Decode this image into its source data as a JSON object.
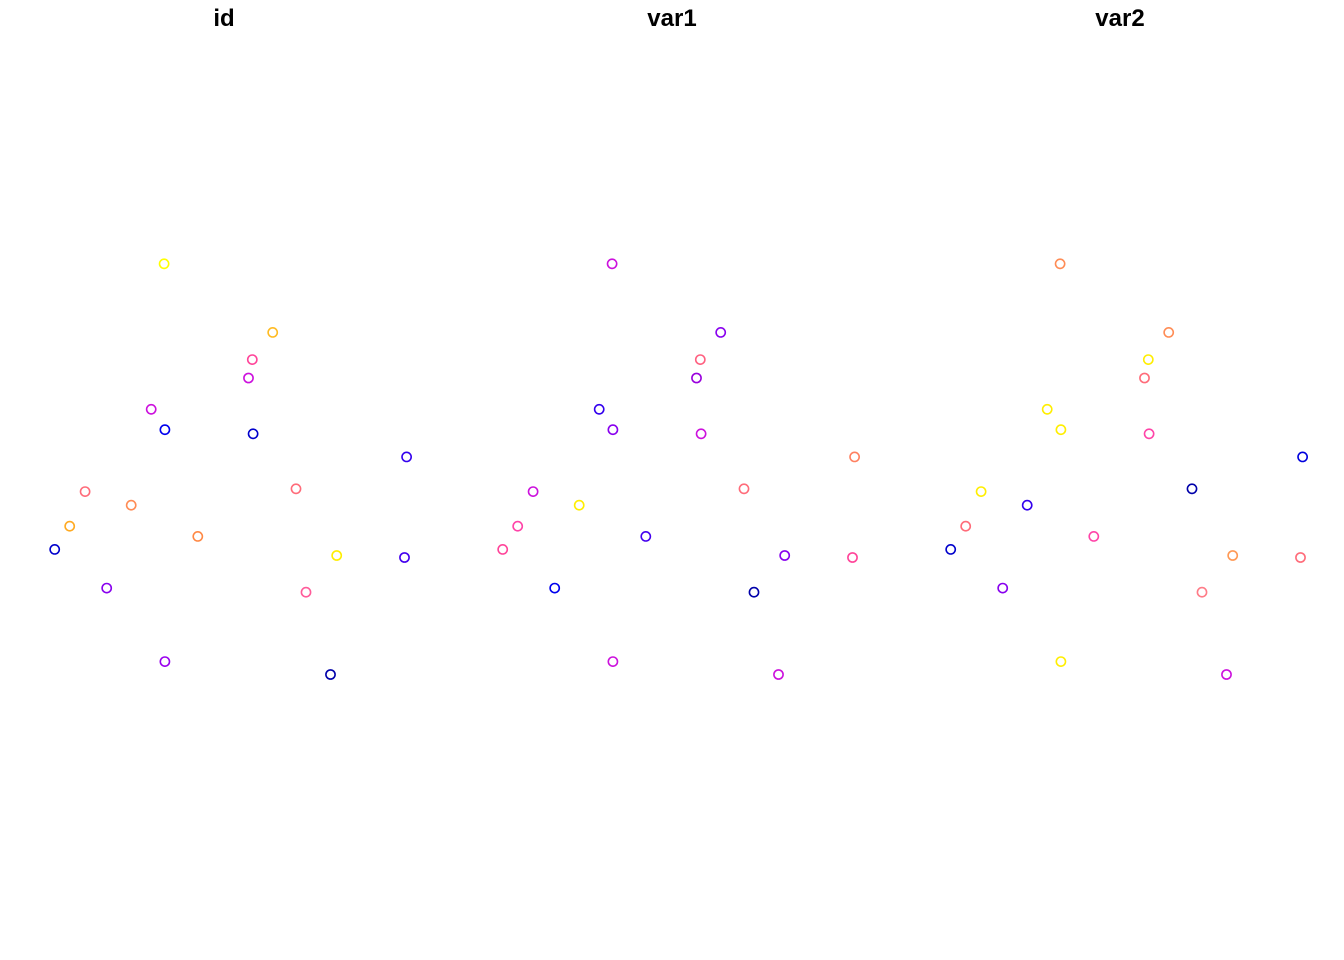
{
  "chart_data": {
    "type": "scatter",
    "axes_drawn": false,
    "grid": false,
    "legend": "none",
    "x_range": [
      0,
      1
    ],
    "y_range": [
      0,
      1
    ],
    "panels": [
      {
        "title": "id",
        "points": [
          {
            "x": 0.093,
            "y": 0.398,
            "color": "#0000CC"
          },
          {
            "x": 0.129,
            "y": 0.432,
            "color": "#FFAA22"
          },
          {
            "x": 0.166,
            "y": 0.483,
            "color": "#FF6C7A"
          },
          {
            "x": 0.218,
            "y": 0.341,
            "color": "#8800EE"
          },
          {
            "x": 0.277,
            "y": 0.463,
            "color": "#FF8C55"
          },
          {
            "x": 0.325,
            "y": 0.604,
            "color": "#CC11DD"
          },
          {
            "x": 0.356,
            "y": 0.818,
            "color": "#FFFF00"
          },
          {
            "x": 0.358,
            "y": 0.574,
            "color": "#0000EE"
          },
          {
            "x": 0.358,
            "y": 0.233,
            "color": "#9900EE"
          },
          {
            "x": 0.437,
            "y": 0.417,
            "color": "#FF8844"
          },
          {
            "x": 0.559,
            "y": 0.65,
            "color": "#CC11DD"
          },
          {
            "x": 0.568,
            "y": 0.677,
            "color": "#FF4499"
          },
          {
            "x": 0.57,
            "y": 0.568,
            "color": "#0000CC"
          },
          {
            "x": 0.617,
            "y": 0.717,
            "color": "#FFBB22"
          },
          {
            "x": 0.673,
            "y": 0.487,
            "color": "#FF6C7A"
          },
          {
            "x": 0.697,
            "y": 0.335,
            "color": "#FF5C9A"
          },
          {
            "x": 0.756,
            "y": 0.214,
            "color": "#0000AA"
          },
          {
            "x": 0.771,
            "y": 0.389,
            "color": "#FFEE00"
          },
          {
            "x": 0.934,
            "y": 0.386,
            "color": "#4400EE"
          },
          {
            "x": 0.939,
            "y": 0.534,
            "color": "#3300EE"
          }
        ]
      },
      {
        "title": "var1",
        "points": [
          {
            "x": 0.093,
            "y": 0.398,
            "color": "#FF4499"
          },
          {
            "x": 0.129,
            "y": 0.432,
            "color": "#FF44A8"
          },
          {
            "x": 0.166,
            "y": 0.483,
            "color": "#CC11DD"
          },
          {
            "x": 0.218,
            "y": 0.341,
            "color": "#0000EE"
          },
          {
            "x": 0.277,
            "y": 0.463,
            "color": "#FFEE00"
          },
          {
            "x": 0.325,
            "y": 0.604,
            "color": "#3300EE"
          },
          {
            "x": 0.356,
            "y": 0.818,
            "color": "#CC11DD"
          },
          {
            "x": 0.358,
            "y": 0.574,
            "color": "#8800EE"
          },
          {
            "x": 0.358,
            "y": 0.233,
            "color": "#CC11DD"
          },
          {
            "x": 0.437,
            "y": 0.417,
            "color": "#4400EE"
          },
          {
            "x": 0.559,
            "y": 0.65,
            "color": "#9900DD"
          },
          {
            "x": 0.568,
            "y": 0.677,
            "color": "#FF6080"
          },
          {
            "x": 0.57,
            "y": 0.568,
            "color": "#CC11DD"
          },
          {
            "x": 0.617,
            "y": 0.717,
            "color": "#8800EE"
          },
          {
            "x": 0.673,
            "y": 0.487,
            "color": "#FF6C7A"
          },
          {
            "x": 0.697,
            "y": 0.335,
            "color": "#0000AA"
          },
          {
            "x": 0.756,
            "y": 0.214,
            "color": "#CC11DD"
          },
          {
            "x": 0.771,
            "y": 0.389,
            "color": "#8800EE"
          },
          {
            "x": 0.934,
            "y": 0.386,
            "color": "#FF4499"
          },
          {
            "x": 0.939,
            "y": 0.534,
            "color": "#FF8060"
          }
        ]
      },
      {
        "title": "var2",
        "points": [
          {
            "x": 0.093,
            "y": 0.398,
            "color": "#0000CC"
          },
          {
            "x": 0.129,
            "y": 0.432,
            "color": "#FF6C7A"
          },
          {
            "x": 0.166,
            "y": 0.483,
            "color": "#FFEE00"
          },
          {
            "x": 0.218,
            "y": 0.341,
            "color": "#8800EE"
          },
          {
            "x": 0.277,
            "y": 0.463,
            "color": "#3300EE"
          },
          {
            "x": 0.325,
            "y": 0.604,
            "color": "#FFEE00"
          },
          {
            "x": 0.356,
            "y": 0.818,
            "color": "#FF8C55"
          },
          {
            "x": 0.358,
            "y": 0.574,
            "color": "#FFEE00"
          },
          {
            "x": 0.358,
            "y": 0.233,
            "color": "#FFEE00"
          },
          {
            "x": 0.437,
            "y": 0.417,
            "color": "#FF44A8"
          },
          {
            "x": 0.559,
            "y": 0.65,
            "color": "#FF6C7A"
          },
          {
            "x": 0.568,
            "y": 0.677,
            "color": "#FFEE00"
          },
          {
            "x": 0.57,
            "y": 0.568,
            "color": "#FF44A8"
          },
          {
            "x": 0.617,
            "y": 0.717,
            "color": "#FF8C55"
          },
          {
            "x": 0.673,
            "y": 0.487,
            "color": "#0000AA"
          },
          {
            "x": 0.697,
            "y": 0.335,
            "color": "#FF7C88"
          },
          {
            "x": 0.756,
            "y": 0.214,
            "color": "#CC11DD"
          },
          {
            "x": 0.771,
            "y": 0.389,
            "color": "#FF9955"
          },
          {
            "x": 0.934,
            "y": 0.386,
            "color": "#FF6C7A"
          },
          {
            "x": 0.939,
            "y": 0.534,
            "color": "#0000DD"
          }
        ]
      }
    ]
  }
}
